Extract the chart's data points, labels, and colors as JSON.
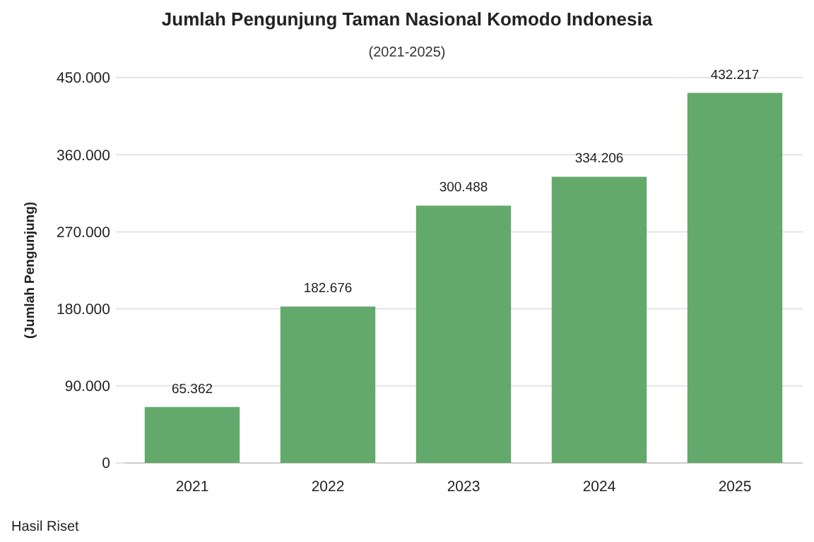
{
  "chart_data": {
    "type": "bar",
    "title": "Jumlah Pengunjung Taman Nasional Komodo Indonesia",
    "subtitle": "(2021-2025)",
    "ylabel": "(Jumlah Pengunjung)",
    "categories": [
      "2021",
      "2022",
      "2023",
      "2024",
      "2025"
    ],
    "values": [
      65362,
      182676,
      300488,
      334206,
      432217
    ],
    "value_labels": [
      "65.362",
      "182.676",
      "300.488",
      "334.206",
      "432.217"
    ],
    "color": "#63a96b",
    "ylim": [
      0,
      450000
    ],
    "yticks": [
      {
        "value": 0,
        "label": "0"
      },
      {
        "value": 90000,
        "label": "90.000"
      },
      {
        "value": 180000,
        "label": "180.000"
      },
      {
        "value": 270000,
        "label": "270.000"
      },
      {
        "value": 360000,
        "label": "360.000"
      },
      {
        "value": 450000,
        "label": "450.000"
      }
    ],
    "grid": "y",
    "annotations": [
      "Hasil Riset"
    ]
  }
}
